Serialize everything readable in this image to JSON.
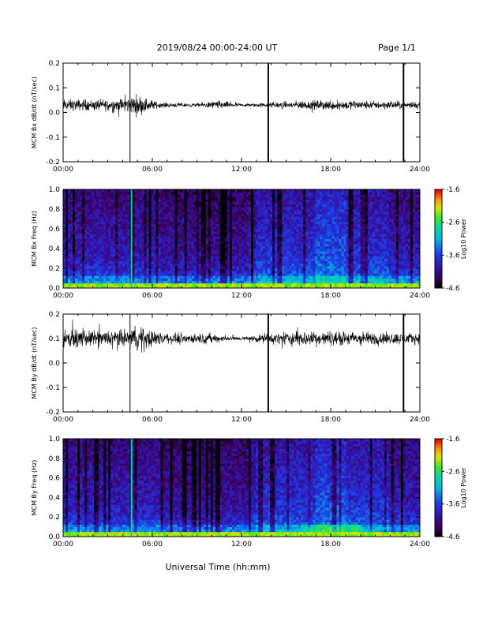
{
  "header": {
    "title": "2019/08/24  00:00-24:00 UT",
    "page": "Page 1/1"
  },
  "xlabel": "Universal Time (hh:mm)",
  "chart_data": [
    {
      "type": "line",
      "id": "bx-wave",
      "ylabel": "MCM Bx dB/dt (nT/sec)",
      "xlim": [
        0,
        24
      ],
      "ylim": [
        -0.2,
        0.2
      ],
      "x_ticks": [
        "00:00",
        "06:00",
        "12:00",
        "18:00",
        "24:00"
      ],
      "y_ticks": [
        "-0.2",
        "-0.1",
        "0.0",
        "0.1",
        "0.2"
      ],
      "baseline": 0.03,
      "spikes_hours": [
        4.5,
        13.8,
        22.9
      ],
      "envelope": [
        {
          "h": 0.0,
          "amp": 0.035
        },
        {
          "h": 2.0,
          "amp": 0.03
        },
        {
          "h": 4.0,
          "amp": 0.04
        },
        {
          "h": 5.0,
          "amp": 0.06
        },
        {
          "h": 6.5,
          "amp": 0.015
        },
        {
          "h": 9.0,
          "amp": 0.01
        },
        {
          "h": 10.3,
          "amp": 0.025
        },
        {
          "h": 12.0,
          "amp": 0.008
        },
        {
          "h": 14.0,
          "amp": 0.015
        },
        {
          "h": 16.0,
          "amp": 0.025
        },
        {
          "h": 18.0,
          "amp": 0.03
        },
        {
          "h": 20.0,
          "amp": 0.025
        },
        {
          "h": 24.0,
          "amp": 0.02
        }
      ]
    },
    {
      "type": "heatmap",
      "id": "bx-spec",
      "ylabel": "MCM Bx Freq (Hz)",
      "xlim": [
        0,
        24
      ],
      "ylim": [
        0,
        1.0
      ],
      "x_ticks": [
        "00:00",
        "06:00",
        "12:00",
        "18:00",
        "24:00"
      ],
      "y_ticks": [
        "0.0",
        "0.2",
        "0.4",
        "0.6",
        "0.8",
        "1.0"
      ],
      "colorbar": {
        "label": "Log10 Power",
        "ticks": [
          "-1.6",
          "-2.6",
          "-3.6",
          "-4.6"
        ],
        "range": [
          -4.6,
          -1.6
        ]
      }
    },
    {
      "type": "line",
      "id": "by-wave",
      "ylabel": "MCM By dB/dt (nT/sec)",
      "xlim": [
        0,
        24
      ],
      "ylim": [
        -0.2,
        0.2
      ],
      "x_ticks": [
        "00:00",
        "06:00",
        "12:00",
        "18:00",
        "24:00"
      ],
      "y_ticks": [
        "-0.2",
        "-0.1",
        "0.0",
        "0.1",
        "0.2"
      ],
      "baseline": 0.1,
      "spikes_hours": [
        4.5,
        13.8,
        22.9
      ],
      "envelope": [
        {
          "h": 0.0,
          "amp": 0.05
        },
        {
          "h": 2.0,
          "amp": 0.045
        },
        {
          "h": 4.0,
          "amp": 0.05
        },
        {
          "h": 5.0,
          "amp": 0.07
        },
        {
          "h": 7.0,
          "amp": 0.03
        },
        {
          "h": 10.0,
          "amp": 0.025
        },
        {
          "h": 12.0,
          "amp": 0.01
        },
        {
          "h": 14.0,
          "amp": 0.03
        },
        {
          "h": 16.0,
          "amp": 0.045
        },
        {
          "h": 18.0,
          "amp": 0.04
        },
        {
          "h": 20.0,
          "amp": 0.04
        },
        {
          "h": 24.0,
          "amp": 0.03
        }
      ]
    },
    {
      "type": "heatmap",
      "id": "by-spec",
      "ylabel": "MCM By Freq (Hz)",
      "xlim": [
        0,
        24
      ],
      "ylim": [
        0,
        1.0
      ],
      "x_ticks": [
        "00:00",
        "06:00",
        "12:00",
        "18:00",
        "24:00"
      ],
      "y_ticks": [
        "0.0",
        "0.2",
        "0.4",
        "0.6",
        "0.8",
        "1.0"
      ],
      "colorbar": {
        "label": "Log10 Power",
        "ticks": [
          "-1.6",
          "-2.6",
          "-3.6",
          "-4.6"
        ],
        "range": [
          -4.6,
          -1.6
        ]
      }
    }
  ]
}
